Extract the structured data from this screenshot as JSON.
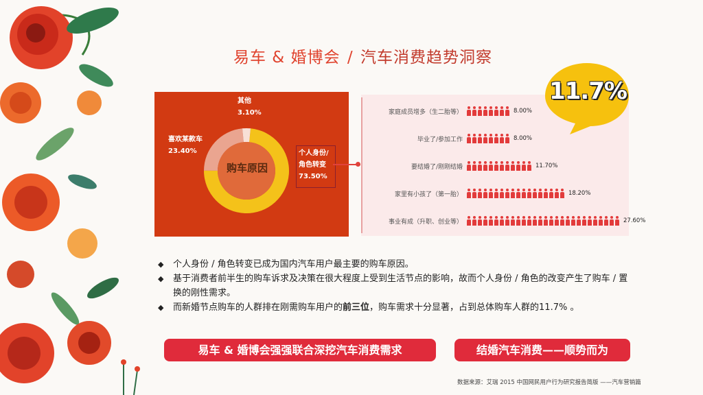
{
  "title": {
    "brand": "易车 & 婚博会",
    "slash": "/",
    "rest": "汽车消费趋势洞察"
  },
  "donut": {
    "center": "购车原因",
    "segments": [
      {
        "label": "个人身份/\n角色转变",
        "value": "73.50%",
        "share": 73.5,
        "color": "#f4c21a"
      },
      {
        "label": "喜欢某款车",
        "value": "23.40%",
        "share": 23.4,
        "color": "#eaa590"
      },
      {
        "label": "其他",
        "value": "3.10%",
        "share": 3.1,
        "color": "#f8e0d6"
      }
    ],
    "labels": {
      "other_name": "其他",
      "other_value": "3.10%",
      "like_name": "喜欢某款车",
      "like_value": "23.40%",
      "identity_name1": "个人身份/",
      "identity_name2": "角色转变",
      "identity_value": "73.50%"
    }
  },
  "life_events": [
    {
      "label": "家庭成员增多（生二胎等）",
      "value": "8.00%",
      "share": 8.0
    },
    {
      "label": "毕业了/参加工作",
      "value": "8.00%",
      "share": 8.0
    },
    {
      "label": "要结婚了/刚刚结婚",
      "value": "11.70%",
      "share": 11.7
    },
    {
      "label": "家里有小孩了（第一胎）",
      "value": "18.20%",
      "share": 18.2
    },
    {
      "label": "事业有成（升职、创业等）",
      "value": "27.60%",
      "share": 27.6
    }
  ],
  "bubble": {
    "value": "11.7%"
  },
  "bullets": {
    "b1": "个人身份 / 角色转变已成为国内汽车用户最主要的购车原因。",
    "b2": "基于消费者前半生的购车诉求及决策在很大程度上受到生活节点的影响，故而个人身份 / 角色的改变产生了购车 / 置换的刚性需求。",
    "b3_pre": "而新婚节点购车的人群排在刚需购车用户的",
    "b3_bold": "前三位",
    "b3_post": "，购车需求十分显著，占到总体购车人群的11.7% 。",
    "mark": "◆"
  },
  "buttons": {
    "left": "易车 & 婚博会强强联合深挖汽车消费需求",
    "right": "结婚汽车消费——顺势而为"
  },
  "source": "数据来源：艾瑞 2015 中国网民用户行为研究报告简版 ——汽车营销篇",
  "colors": {
    "accent": "#e02b3b",
    "panel": "#d23a12",
    "yellow": "#f4c21a"
  }
}
